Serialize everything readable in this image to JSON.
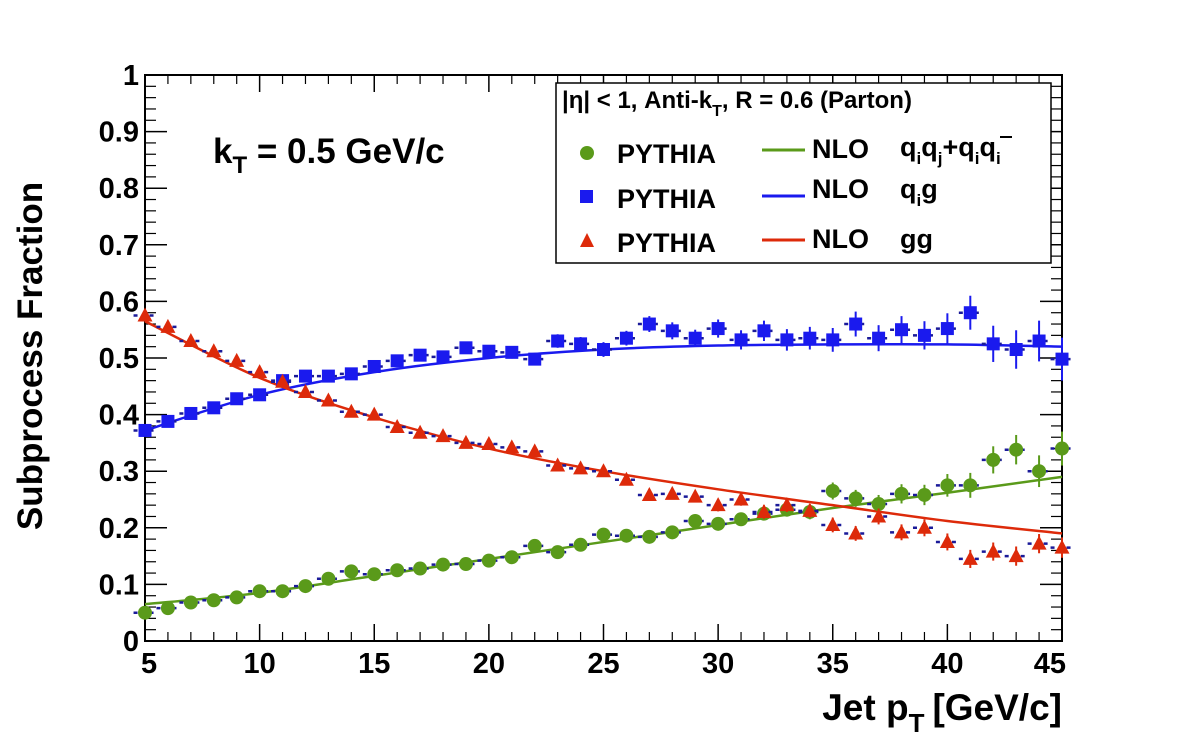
{
  "chart_data": {
    "type": "scatter",
    "xlabel": "Jet p",
    "xlabel_sub": "T",
    "xlabel_unit": "[GeV/c]",
    "ylabel": "Subprocess Fraction",
    "xlim": [
      5,
      45
    ],
    "ylim": [
      0,
      1
    ],
    "x_ticks": [
      5,
      10,
      15,
      20,
      25,
      30,
      35,
      40,
      45
    ],
    "y_ticks": [
      0,
      0.1,
      0.2,
      0.3,
      0.4,
      0.5,
      0.6,
      0.7,
      0.8,
      0.9,
      1
    ],
    "y_tick_labels": [
      "0",
      "0.1",
      "0.2",
      "0.3",
      "0.4",
      "0.5",
      "0.6",
      "0.7",
      "0.8",
      "0.9",
      "1"
    ],
    "annotation": {
      "main": "k",
      "sub": "T",
      "rest": " = 0.5 GeV/c"
    },
    "legend": {
      "header": {
        "a": "|η| < 1, Anti-k",
        "sub": "T",
        "b": ", R = 0.6 (Parton)"
      },
      "position": "top-right",
      "pythia_label": "PYTHIA",
      "nlo_label": "NLO",
      "process_qq": {
        "q1": "q",
        "s1": "i",
        "q2": "q",
        "s2": "j",
        "plus": "+",
        "q3": "q",
        "s3": "i",
        "q4": "q",
        "s4": "i"
      },
      "process_qg": {
        "q": "q",
        "s": "i",
        "g": "g"
      },
      "process_gg": "gg"
    },
    "series": [
      {
        "marker": "circle",
        "color": "#5a9a1a",
        "x": [
          5,
          6,
          7,
          8,
          9,
          10,
          11,
          12,
          13,
          14,
          15,
          16,
          17,
          18,
          19,
          20,
          21,
          22,
          23,
          24,
          25,
          26,
          27,
          28,
          29,
          30,
          31,
          32,
          33,
          34,
          35,
          36,
          37,
          38,
          39,
          40,
          41,
          42,
          43,
          44,
          45
        ],
        "values": [
          0.05,
          0.058,
          0.068,
          0.072,
          0.077,
          0.088,
          0.088,
          0.097,
          0.11,
          0.123,
          0.118,
          0.125,
          0.128,
          0.135,
          0.136,
          0.142,
          0.148,
          0.168,
          0.157,
          0.17,
          0.188,
          0.186,
          0.184,
          0.192,
          0.212,
          0.207,
          0.215,
          0.225,
          0.232,
          0.228,
          0.265,
          0.252,
          0.242,
          0.26,
          0.258,
          0.275,
          0.275,
          0.32,
          0.338,
          0.3,
          0.34
        ],
        "errors": [
          0.005,
          0.005,
          0.005,
          0.005,
          0.005,
          0.005,
          0.005,
          0.005,
          0.005,
          0.005,
          0.005,
          0.005,
          0.005,
          0.006,
          0.006,
          0.006,
          0.006,
          0.007,
          0.007,
          0.008,
          0.008,
          0.008,
          0.009,
          0.009,
          0.01,
          0.01,
          0.011,
          0.012,
          0.012,
          0.013,
          0.015,
          0.015,
          0.016,
          0.017,
          0.018,
          0.02,
          0.022,
          0.024,
          0.026,
          0.028,
          0.03
        ]
      },
      {
        "marker": "square",
        "color": "#1a1aee",
        "x": [
          5,
          6,
          7,
          8,
          9,
          10,
          11,
          12,
          13,
          14,
          15,
          16,
          17,
          18,
          19,
          20,
          21,
          22,
          23,
          24,
          25,
          26,
          27,
          28,
          29,
          30,
          31,
          32,
          33,
          34,
          35,
          36,
          37,
          38,
          39,
          40,
          41,
          42,
          43,
          44,
          45
        ],
        "values": [
          0.372,
          0.388,
          0.402,
          0.412,
          0.428,
          0.435,
          0.46,
          0.468,
          0.468,
          0.472,
          0.485,
          0.495,
          0.505,
          0.502,
          0.518,
          0.512,
          0.51,
          0.498,
          0.53,
          0.525,
          0.515,
          0.535,
          0.56,
          0.548,
          0.535,
          0.552,
          0.532,
          0.548,
          0.532,
          0.535,
          0.532,
          0.56,
          0.535,
          0.55,
          0.54,
          0.552,
          0.58,
          0.525,
          0.515,
          0.53,
          0.498
        ],
        "errors": [
          0.006,
          0.006,
          0.006,
          0.006,
          0.006,
          0.007,
          0.007,
          0.007,
          0.007,
          0.008,
          0.008,
          0.008,
          0.009,
          0.009,
          0.01,
          0.01,
          0.011,
          0.011,
          0.012,
          0.012,
          0.013,
          0.013,
          0.014,
          0.015,
          0.015,
          0.016,
          0.017,
          0.018,
          0.019,
          0.02,
          0.021,
          0.022,
          0.023,
          0.024,
          0.025,
          0.027,
          0.03,
          0.032,
          0.034,
          0.036,
          0.038
        ]
      },
      {
        "marker": "triangle",
        "color": "#dd2a0a",
        "x": [
          5,
          6,
          7,
          8,
          9,
          10,
          11,
          12,
          13,
          14,
          15,
          16,
          17,
          18,
          19,
          20,
          21,
          22,
          23,
          24,
          25,
          26,
          27,
          28,
          29,
          30,
          31,
          32,
          33,
          34,
          35,
          36,
          37,
          38,
          39,
          40,
          41,
          42,
          43,
          44,
          45
        ],
        "values": [
          0.575,
          0.555,
          0.53,
          0.512,
          0.495,
          0.475,
          0.458,
          0.44,
          0.425,
          0.405,
          0.4,
          0.378,
          0.368,
          0.362,
          0.35,
          0.348,
          0.342,
          0.335,
          0.31,
          0.305,
          0.3,
          0.285,
          0.258,
          0.26,
          0.255,
          0.24,
          0.25,
          0.228,
          0.24,
          0.23,
          0.205,
          0.19,
          0.22,
          0.192,
          0.2,
          0.175,
          0.145,
          0.158,
          0.15,
          0.172,
          0.165
        ],
        "errors": [
          0.006,
          0.006,
          0.006,
          0.006,
          0.006,
          0.006,
          0.006,
          0.006,
          0.006,
          0.006,
          0.007,
          0.007,
          0.007,
          0.007,
          0.007,
          0.008,
          0.008,
          0.008,
          0.008,
          0.009,
          0.009,
          0.009,
          0.01,
          0.01,
          0.01,
          0.011,
          0.011,
          0.012,
          0.012,
          0.012,
          0.013,
          0.013,
          0.014,
          0.014,
          0.015,
          0.015,
          0.016,
          0.016,
          0.017,
          0.017,
          0.018
        ]
      }
    ],
    "curves": [
      {
        "color": "#5a9a1a",
        "x": [
          5,
          10,
          15,
          20,
          25,
          30,
          35,
          40,
          45
        ],
        "values": [
          0.065,
          0.085,
          0.115,
          0.145,
          0.175,
          0.205,
          0.235,
          0.262,
          0.29
        ]
      },
      {
        "color": "#1a1aee",
        "x": [
          5,
          10,
          15,
          20,
          25,
          30,
          35,
          40,
          45
        ],
        "values": [
          0.372,
          0.435,
          0.475,
          0.5,
          0.515,
          0.522,
          0.524,
          0.524,
          0.52
        ]
      },
      {
        "color": "#dd2a0a",
        "x": [
          5,
          10,
          15,
          20,
          25,
          30,
          35,
          40,
          45
        ],
        "values": [
          0.565,
          0.465,
          0.395,
          0.34,
          0.3,
          0.268,
          0.24,
          0.212,
          0.19
        ]
      }
    ]
  }
}
